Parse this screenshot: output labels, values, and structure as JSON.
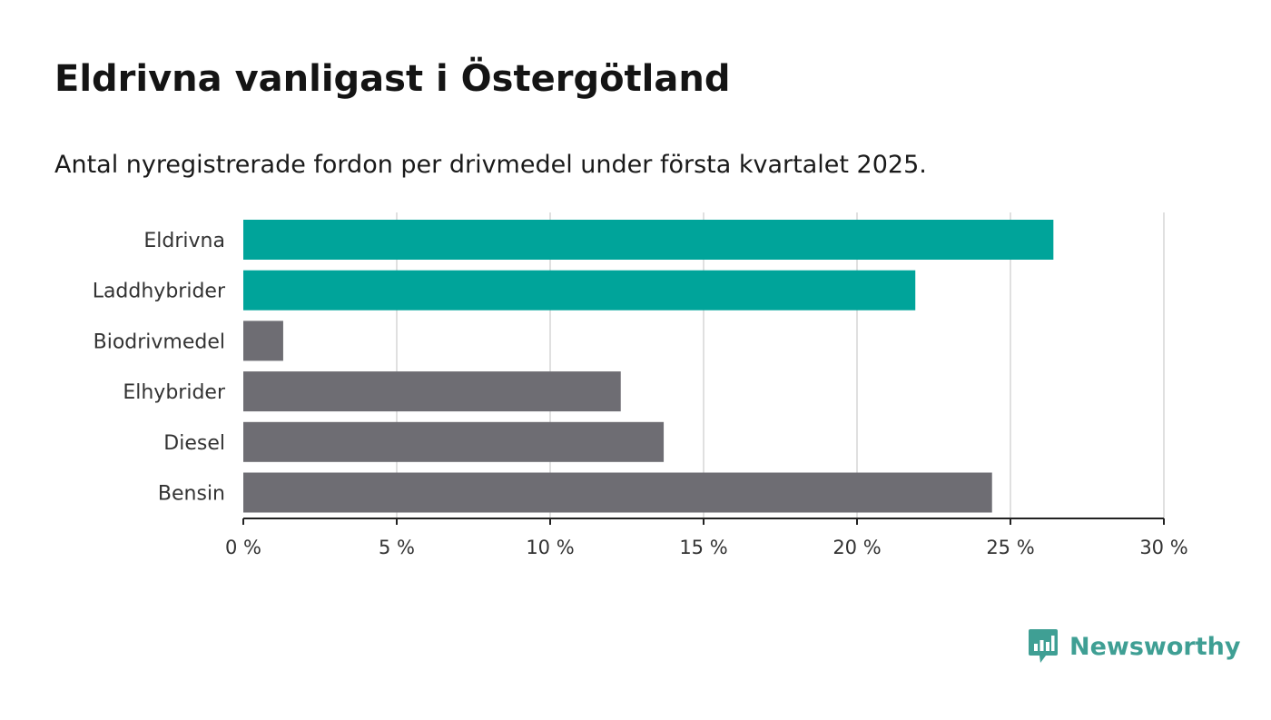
{
  "header": {
    "title": "Eldrivna vanligast i Östergötland",
    "subtitle": "Antal nyregistrerade fordon per drivmedel under första kvartalet 2025."
  },
  "brand": {
    "name": "Newsworthy",
    "icon": "newsworthy-logo-icon",
    "color": "#3f9f94"
  },
  "chart_data": {
    "type": "bar",
    "orientation": "horizontal",
    "categories": [
      "Eldrivna",
      "Laddhybrider",
      "Biodrivmedel",
      "Elhybrider",
      "Diesel",
      "Bensin"
    ],
    "values": [
      26.4,
      21.9,
      1.3,
      12.3,
      13.7,
      24.4
    ],
    "colors": [
      "#00a49a",
      "#00a49a",
      "#6e6d73",
      "#6e6d73",
      "#6e6d73",
      "#6e6d73"
    ],
    "xlim": [
      0,
      30
    ],
    "xticks": [
      0,
      5,
      10,
      15,
      20,
      25,
      30
    ],
    "xtick_labels": [
      "0 %",
      "5 %",
      "10 %",
      "15 %",
      "20 %",
      "25 %",
      "30 %"
    ],
    "grid": true,
    "highlight_color": "#00a49a",
    "default_color": "#6e6d73"
  }
}
